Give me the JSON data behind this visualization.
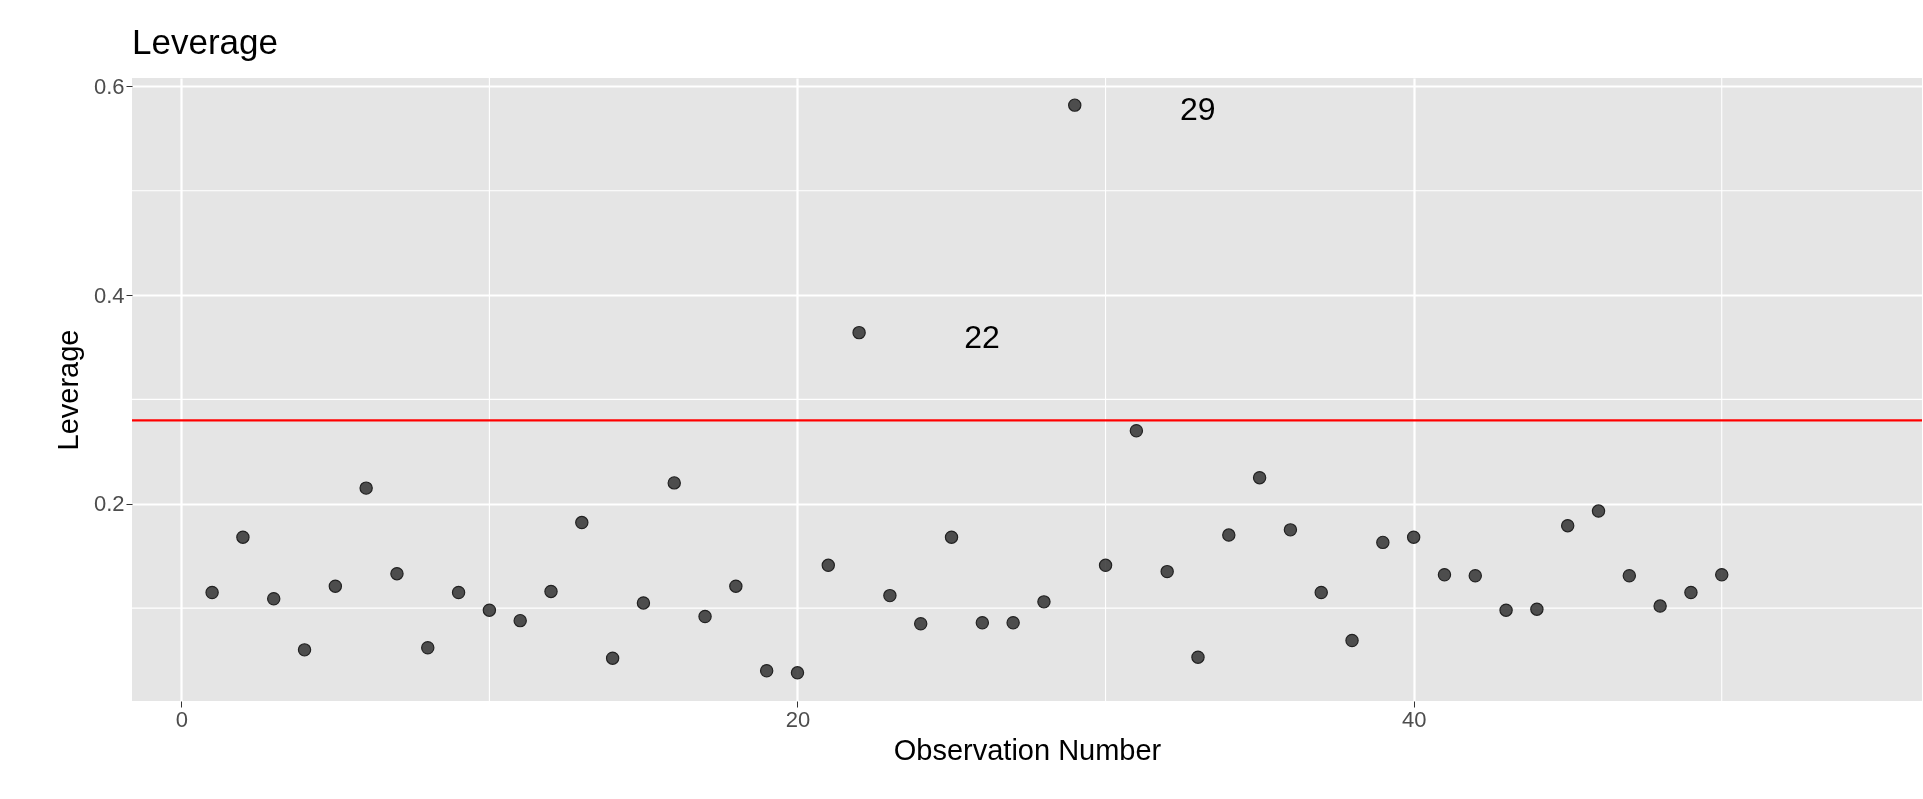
{
  "chart_data": {
    "type": "scatter",
    "title": "Leverage",
    "xlabel": "Observation Number",
    "ylabel": "Leverage",
    "x": [
      1,
      2,
      3,
      4,
      5,
      6,
      7,
      8,
      9,
      10,
      11,
      12,
      13,
      14,
      15,
      16,
      17,
      18,
      19,
      20,
      21,
      22,
      23,
      24,
      25,
      26,
      27,
      28,
      29,
      30,
      31,
      32,
      33,
      34,
      35,
      36,
      37,
      38,
      39,
      40,
      41,
      42,
      43,
      44,
      45,
      46,
      47,
      48,
      49,
      50
    ],
    "series": [
      {
        "color": "#333333",
        "values": [
          0.115,
          0.168,
          0.109,
          0.06,
          0.121,
          0.215,
          0.133,
          0.062,
          0.115,
          0.098,
          0.088,
          0.116,
          0.182,
          0.052,
          0.105,
          0.22,
          0.092,
          0.121,
          0.04,
          0.038,
          0.141,
          0.364,
          0.112,
          0.085,
          0.168,
          0.086,
          0.086,
          0.106,
          0.582,
          0.141,
          0.27,
          0.135,
          0.053,
          0.17,
          0.225,
          0.175,
          0.115,
          0.069,
          0.163,
          0.168,
          0.132,
          0.131,
          0.098,
          0.099,
          0.179,
          0.193,
          0.131,
          0.102,
          0.115,
          0.132
        ]
      }
    ],
    "xlim": [
      -1.6,
      56.5
    ],
    "ylim": [
      0.011,
      0.608
    ],
    "xticks": [
      0,
      20,
      40
    ],
    "yticks": [
      0.2,
      0.4,
      0.6
    ],
    "grid": true,
    "marker": "circle",
    "legend": false,
    "ref_lines": [
      {
        "axis": "y",
        "value": 0.28,
        "color": "#ff0000"
      }
    ],
    "annotations": [
      "22",
      "29"
    ]
  }
}
